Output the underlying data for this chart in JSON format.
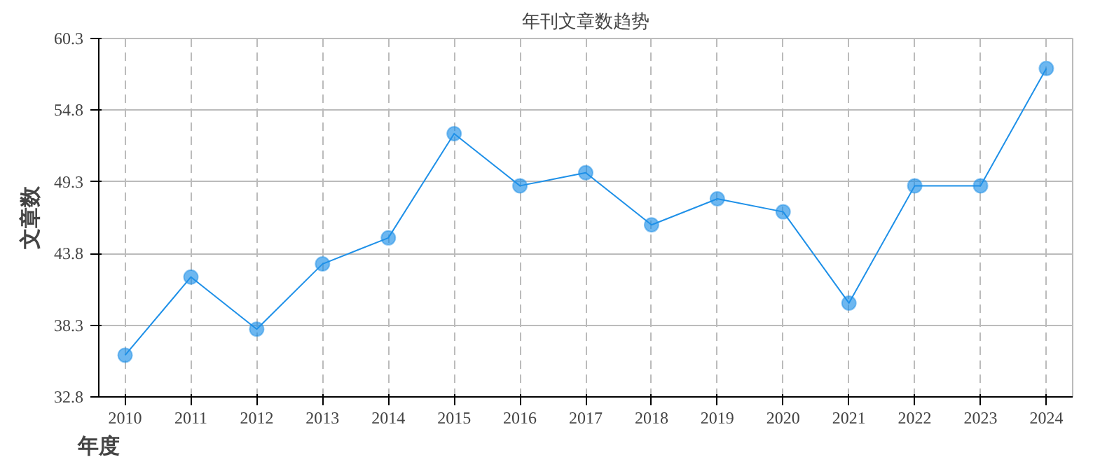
{
  "chart_data": {
    "type": "line",
    "title": "年刊文章数趋势",
    "xlabel": "年度",
    "ylabel": "文章数",
    "categories": [
      "2010",
      "2011",
      "2012",
      "2013",
      "2014",
      "2015",
      "2016",
      "2017",
      "2018",
      "2019",
      "2020",
      "2021",
      "2022",
      "2023",
      "2024"
    ],
    "series": [
      {
        "color": "#1e90e8",
        "values": [
          36,
          42,
          38,
          43,
          45,
          53,
          49,
          50,
          46,
          48,
          47,
          40,
          49,
          49,
          58
        ]
      }
    ],
    "ylim": [
      32.8,
      60.3
    ],
    "yticks": [
      32.8,
      38.3,
      43.8,
      49.3,
      54.8,
      60.3
    ],
    "grid": true,
    "marker": "circle",
    "line_style": "solid"
  }
}
